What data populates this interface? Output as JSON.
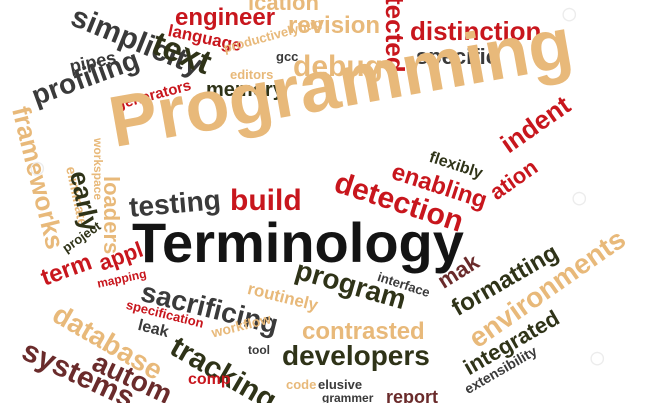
{
  "title": "Terminology",
  "words": {
    "w1": "engineer",
    "w2": "revision",
    "w3": "tected",
    "w4": "distinction",
    "w5": "simplicity",
    "w6": "text",
    "w7": "language",
    "w8": "productivelybug",
    "w9": "gcc",
    "w10": "debug",
    "w11": "specific",
    "w12": "editors",
    "w13": "pipes",
    "w14": "memory",
    "w15": "generators",
    "w16": "profiling",
    "w17": "Programming",
    "w18": "frameworks",
    "w19": "workspace",
    "w20": "eliminate",
    "w21": "early",
    "w22": "loaders",
    "w23": "flexibly",
    "w24": "indent",
    "w25": "enabling",
    "w26": "detection",
    "w27": "build",
    "w28": "testing",
    "w29": "project",
    "w30": "term",
    "w31": "appl",
    "w32": "mapping",
    "w33": "interface",
    "w34": "program",
    "w35": "routinely",
    "w36": "sacrificing",
    "w37": "specification",
    "w38": "formatting",
    "w39": "environments",
    "w40": "database",
    "w41": "leak",
    "w42": "workflow",
    "w43": "contrasted",
    "w44": "tracking",
    "w45": "tool",
    "w46": "developers",
    "w47": "systems",
    "w48": "autom",
    "w49": "comp",
    "w50": "code",
    "w51": "elusive",
    "w52": "grammer",
    "w53": "integrated",
    "w54": "extensibility",
    "w55": "ication",
    "w56": "mak",
    "w57": "ation",
    "w58": "report"
  },
  "colors": {
    "red": "#c8161d",
    "dark": "#3a3a3a",
    "brown": "#5a2a2a",
    "tan": "#e8b97a",
    "olive": "#2f3318",
    "maroon": "#6a2b2b"
  }
}
